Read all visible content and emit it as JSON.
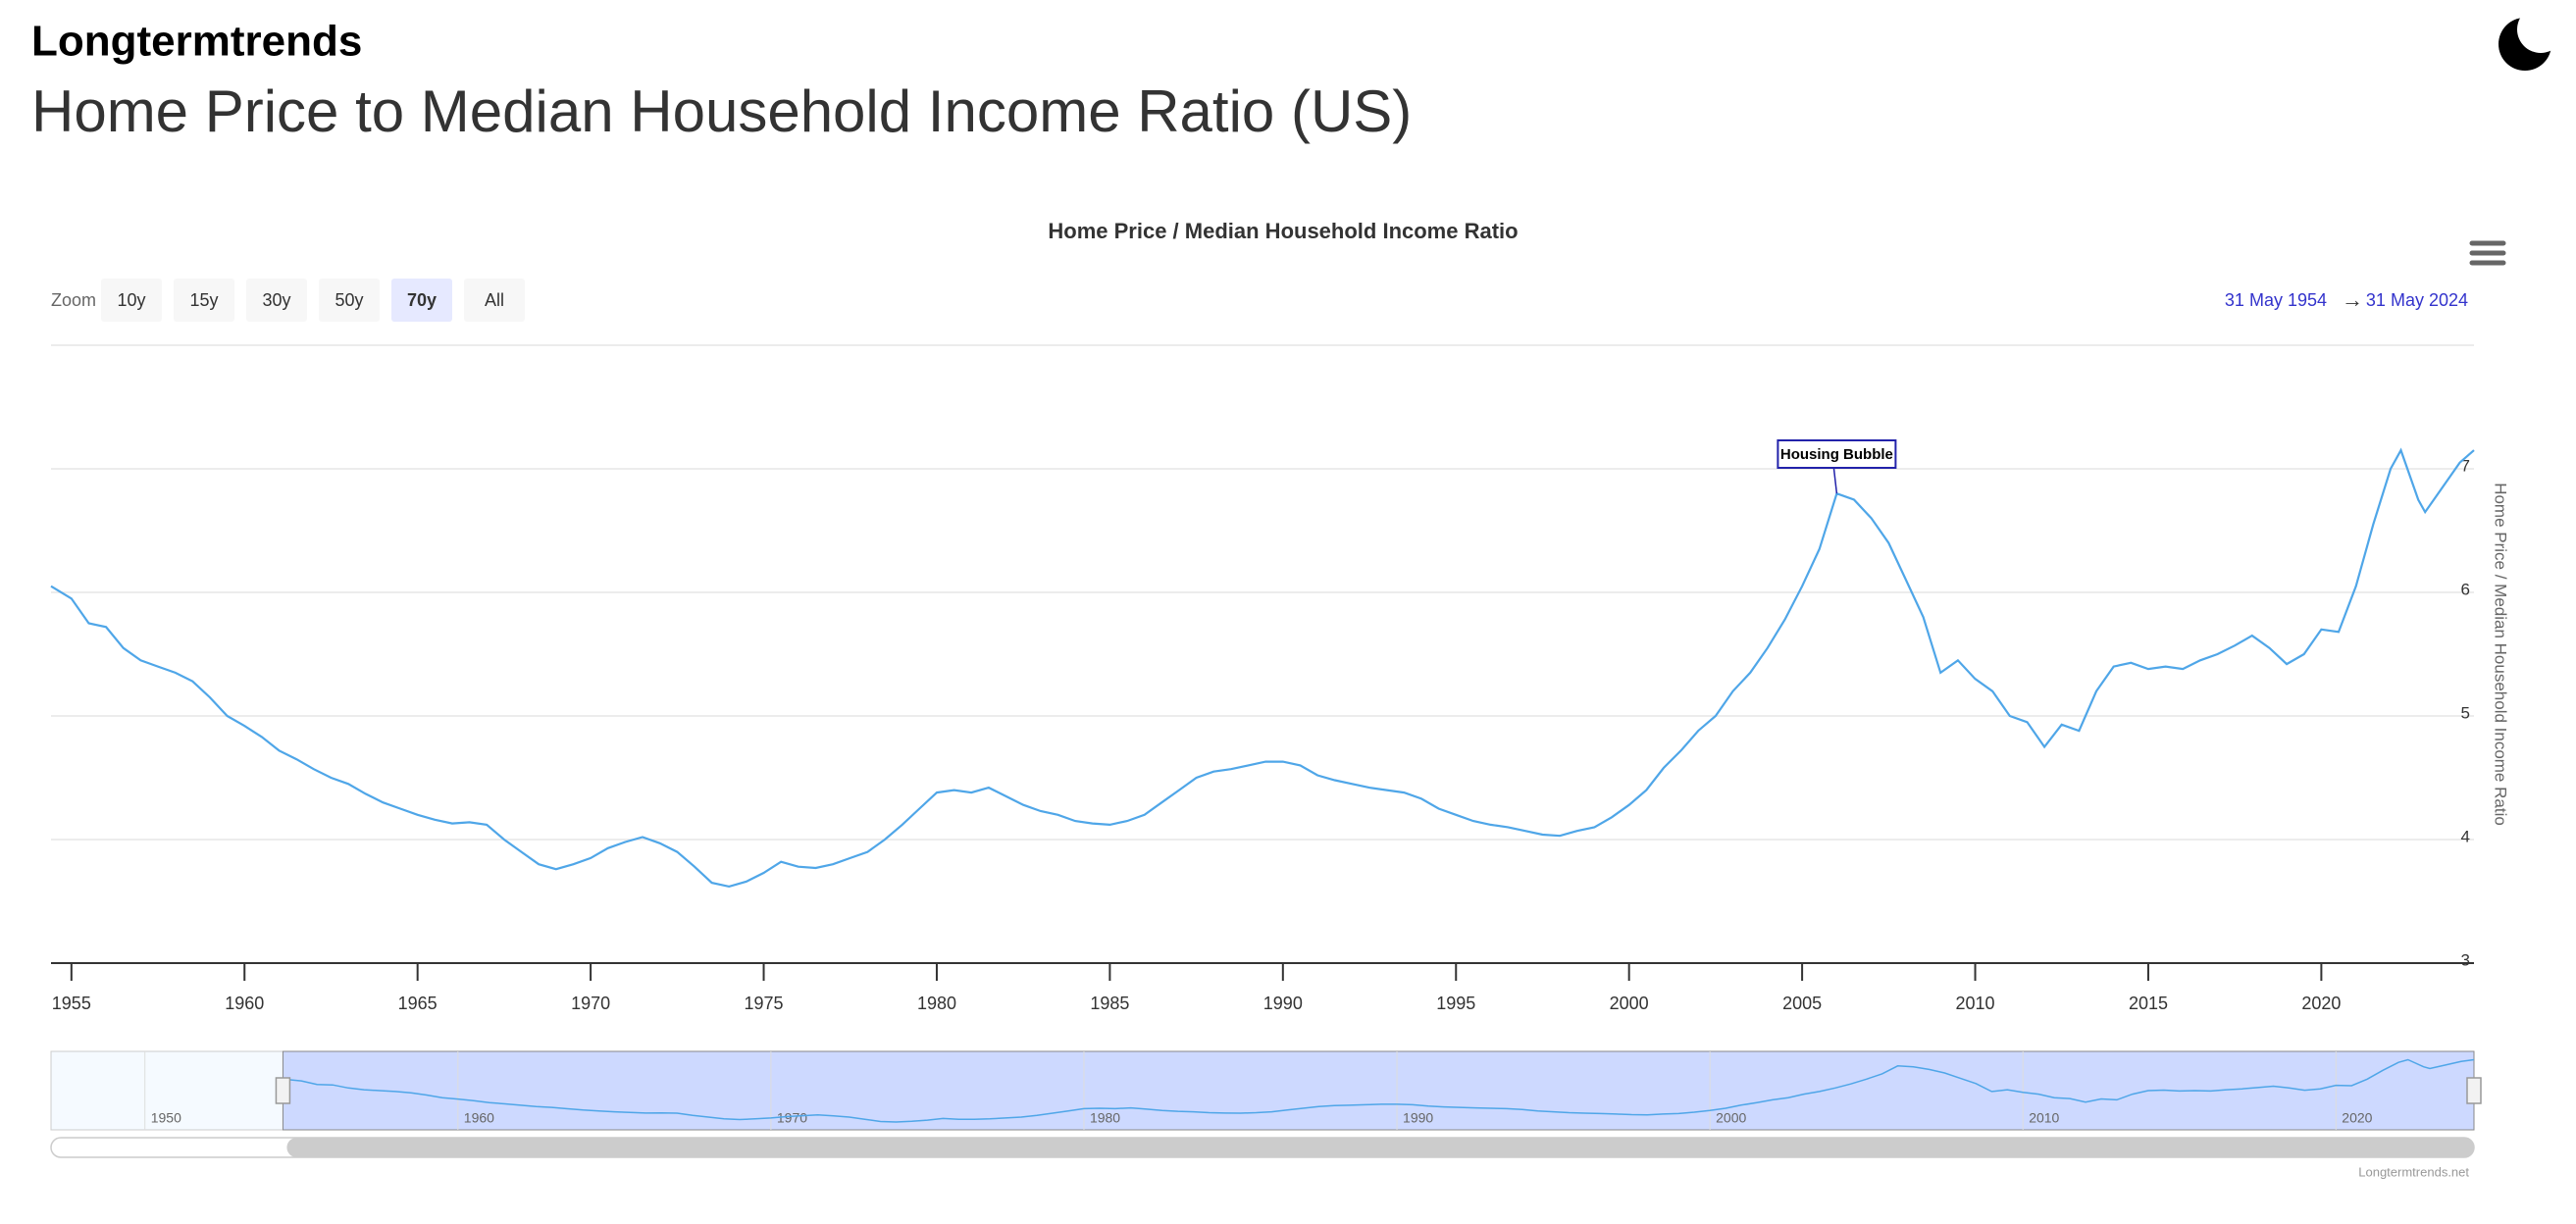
{
  "header": {
    "site": "Longtermtrends",
    "title": "Home Price to Median Household Income Ratio (US)"
  },
  "zoom": {
    "label": "Zoom",
    "buttons": [
      "10y",
      "15y",
      "30y",
      "50y",
      "70y",
      "All"
    ],
    "selected": 4
  },
  "range": {
    "from": "31 May 1954",
    "arrow": "→",
    "to": "31 May 2024"
  },
  "footer": "Longtermtrends.net",
  "chart_data": {
    "type": "line",
    "title": "Home Price / Median Household Income Ratio",
    "y_label": "Home Price / Median Household Income Ratio",
    "color": "#4fa6e8",
    "x": [
      1954.41,
      1955,
      1955.5,
      1956,
      1956.5,
      1957,
      1957.5,
      1958,
      1958.5,
      1959,
      1959.5,
      1960,
      1960.5,
      1961,
      1961.5,
      1962,
      1962.5,
      1963,
      1963.5,
      1964,
      1964.5,
      1965,
      1965.5,
      1966,
      1966.5,
      1967,
      1967.5,
      1968,
      1968.5,
      1969,
      1969.5,
      1970,
      1970.5,
      1971,
      1971.5,
      1972,
      1972.5,
      1973,
      1973.5,
      1974,
      1974.5,
      1975,
      1975.5,
      1976,
      1976.5,
      1977,
      1977.5,
      1978,
      1978.5,
      1979,
      1979.5,
      1980,
      1980.5,
      1981,
      1981.5,
      1982,
      1982.5,
      1983,
      1983.5,
      1984,
      1984.5,
      1985,
      1985.5,
      1986,
      1986.5,
      1987,
      1987.5,
      1988,
      1988.5,
      1989,
      1989.5,
      1990,
      1990.5,
      1991,
      1991.5,
      1992,
      1992.5,
      1993,
      1993.5,
      1994,
      1994.5,
      1995,
      1995.5,
      1996,
      1996.5,
      1997,
      1997.5,
      1998,
      1998.5,
      1999,
      1999.5,
      2000,
      2000.5,
      2001,
      2001.5,
      2002,
      2002.5,
      2003,
      2003.5,
      2004,
      2004.5,
      2005,
      2005.5,
      2006,
      2006.5,
      2007,
      2007.5,
      2008,
      2008.5,
      2009,
      2009.5,
      2010,
      2010.5,
      2011,
      2011.5,
      2012,
      2012.5,
      2013,
      2013.5,
      2014,
      2014.5,
      2015,
      2015.5,
      2016,
      2016.5,
      2017,
      2017.5,
      2018,
      2018.5,
      2019,
      2019.5,
      2020,
      2020.5,
      2021,
      2021.5,
      2022,
      2022.3,
      2022.8,
      2023,
      2023.5,
      2024,
      2024.41
    ],
    "values": [
      6.05,
      5.95,
      5.75,
      5.72,
      5.55,
      5.45,
      5.4,
      5.35,
      5.28,
      5.15,
      5.0,
      4.92,
      4.83,
      4.72,
      4.65,
      4.57,
      4.5,
      4.45,
      4.37,
      4.3,
      4.25,
      4.2,
      4.16,
      4.13,
      4.14,
      4.12,
      4.0,
      3.9,
      3.8,
      3.76,
      3.8,
      3.85,
      3.93,
      3.98,
      4.02,
      3.97,
      3.9,
      3.78,
      3.65,
      3.62,
      3.66,
      3.73,
      3.82,
      3.78,
      3.77,
      3.8,
      3.85,
      3.9,
      4.0,
      4.12,
      4.25,
      4.38,
      4.4,
      4.38,
      4.42,
      4.35,
      4.28,
      4.23,
      4.2,
      4.15,
      4.13,
      4.12,
      4.15,
      4.2,
      4.3,
      4.4,
      4.5,
      4.55,
      4.57,
      4.6,
      4.63,
      4.63,
      4.6,
      4.52,
      4.48,
      4.45,
      4.42,
      4.4,
      4.38,
      4.33,
      4.25,
      4.2,
      4.15,
      4.12,
      4.1,
      4.07,
      4.04,
      4.03,
      4.07,
      4.1,
      4.18,
      4.28,
      4.4,
      4.58,
      4.72,
      4.88,
      5.0,
      5.2,
      5.35,
      5.55,
      5.78,
      6.05,
      6.35,
      6.8,
      6.75,
      6.6,
      6.4,
      6.1,
      5.8,
      5.35,
      5.45,
      5.3,
      5.2,
      5.0,
      4.95,
      4.75,
      4.93,
      4.88,
      5.2,
      5.4,
      5.43,
      5.38,
      5.4,
      5.38,
      5.45,
      5.5,
      5.57,
      5.65,
      5.55,
      5.42,
      5.5,
      5.7,
      5.68,
      6.05,
      6.55,
      7.0,
      7.15,
      6.75,
      6.65,
      6.85,
      7.05,
      7.15
    ],
    "xlim": [
      1954.41,
      2024.41
    ],
    "xticks": [
      1955,
      1960,
      1965,
      1970,
      1975,
      1980,
      1985,
      1990,
      1995,
      2000,
      2005,
      2010,
      2015,
      2020
    ],
    "ylim": [
      3,
      8
    ],
    "yticks": [
      3,
      4,
      5,
      6,
      7
    ],
    "grid": true,
    "annotation": {
      "text": "Housing Bubble",
      "x": 2006,
      "y": 6.8
    },
    "navigator": {
      "xlim": [
        1947,
        2024.41
      ],
      "ylim": [
        3.4,
        7.4
      ],
      "xticks": [
        1950,
        1960,
        1970,
        1980,
        1990,
        2000,
        2010,
        2020
      ],
      "range": [
        1954.41,
        2024.41
      ]
    }
  }
}
